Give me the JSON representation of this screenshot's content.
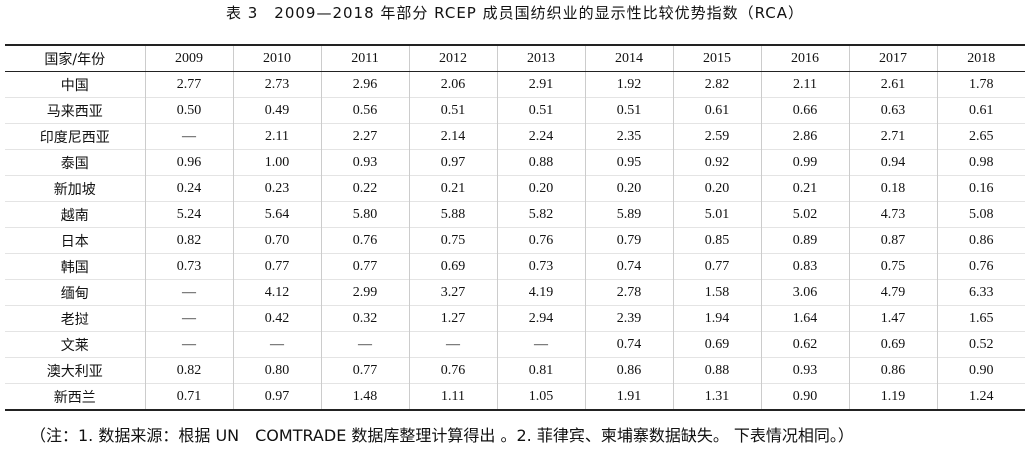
{
  "title": "表 3　2009—2018 年部分 RCEP 成员国纺织业的显示性比较优势指数（RCA）",
  "table": {
    "header": [
      "国家/年份",
      "2009",
      "2010",
      "2011",
      "2012",
      "2013",
      "2014",
      "2015",
      "2016",
      "2017",
      "2018"
    ],
    "rows": [
      [
        "中国",
        "2.77",
        "2.73",
        "2.96",
        "2.06",
        "2.91",
        "1.92",
        "2.82",
        "2.11",
        "2.61",
        "1.78"
      ],
      [
        "马来西亚",
        "0.50",
        "0.49",
        "0.56",
        "0.51",
        "0.51",
        "0.51",
        "0.61",
        "0.66",
        "0.63",
        "0.61"
      ],
      [
        "印度尼西亚",
        "—",
        "2.11",
        "2.27",
        "2.14",
        "2.24",
        "2.35",
        "2.59",
        "2.86",
        "2.71",
        "2.65"
      ],
      [
        "泰国",
        "0.96",
        "1.00",
        "0.93",
        "0.97",
        "0.88",
        "0.95",
        "0.92",
        "0.99",
        "0.94",
        "0.98"
      ],
      [
        "新加坡",
        "0.24",
        "0.23",
        "0.22",
        "0.21",
        "0.20",
        "0.20",
        "0.20",
        "0.21",
        "0.18",
        "0.16"
      ],
      [
        "越南",
        "5.24",
        "5.64",
        "5.80",
        "5.88",
        "5.82",
        "5.89",
        "5.01",
        "5.02",
        "4.73",
        "5.08"
      ],
      [
        "日本",
        "0.82",
        "0.70",
        "0.76",
        "0.75",
        "0.76",
        "0.79",
        "0.85",
        "0.89",
        "0.87",
        "0.86"
      ],
      [
        "韩国",
        "0.73",
        "0.77",
        "0.77",
        "0.69",
        "0.73",
        "0.74",
        "0.77",
        "0.83",
        "0.75",
        "0.76"
      ],
      [
        "缅甸",
        "—",
        "4.12",
        "2.99",
        "3.27",
        "4.19",
        "2.78",
        "1.58",
        "3.06",
        "4.79",
        "6.33"
      ],
      [
        "老挝",
        "—",
        "0.42",
        "0.32",
        "1.27",
        "2.94",
        "2.39",
        "1.94",
        "1.64",
        "1.47",
        "1.65"
      ],
      [
        "文莱",
        "—",
        "—",
        "—",
        "—",
        "—",
        "0.74",
        "0.69",
        "0.62",
        "0.69",
        "0.52"
      ],
      [
        "澳大利亚",
        "0.82",
        "0.80",
        "0.77",
        "0.76",
        "0.81",
        "0.86",
        "0.88",
        "0.93",
        "0.86",
        "0.90"
      ],
      [
        "新西兰",
        "0.71",
        "0.97",
        "1.48",
        "1.11",
        "1.05",
        "1.91",
        "1.31",
        "0.90",
        "1.19",
        "1.24"
      ]
    ]
  },
  "note": "（注：1. 数据来源：根据 UN　COMTRADE 数据库整理计算得出 。2. 菲律宾、柬埔寨数据缺失。 下表情况相同。）"
}
